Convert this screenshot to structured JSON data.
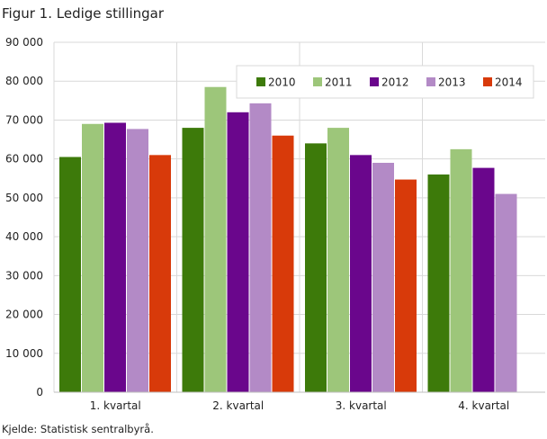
{
  "title": "Figur 1. Ledige stillingar",
  "source": "Kjelde: Statistisk sentralbyrå.",
  "chart_data": {
    "type": "bar",
    "categories": [
      "1. kvartal",
      "2. kvartal",
      "3. kvartal",
      "4. kvartal"
    ],
    "series": [
      {
        "name": "2010",
        "color": "#3d7a0a",
        "values": [
          60500,
          68000,
          64000,
          56000
        ]
      },
      {
        "name": "2011",
        "color": "#9dc67a",
        "values": [
          69000,
          78500,
          68000,
          62500
        ]
      },
      {
        "name": "2012",
        "color": "#6a068c",
        "values": [
          69300,
          72000,
          61000,
          57700
        ]
      },
      {
        "name": "2013",
        "color": "#b38ac6",
        "values": [
          67700,
          74300,
          59000,
          51000
        ]
      },
      {
        "name": "2014",
        "color": "#d83a0a",
        "values": [
          61000,
          66000,
          54700,
          null
        ]
      }
    ],
    "ylim": [
      0,
      90000
    ],
    "yticks": [
      0,
      10000,
      20000,
      30000,
      40000,
      50000,
      60000,
      70000,
      80000,
      90000
    ],
    "ytick_labels": [
      "0",
      "10 000",
      "20 000",
      "30 000",
      "40 000",
      "50 000",
      "60 000",
      "70 000",
      "80 000",
      "90 000"
    ],
    "grid": true,
    "legend_position": "top-right"
  }
}
